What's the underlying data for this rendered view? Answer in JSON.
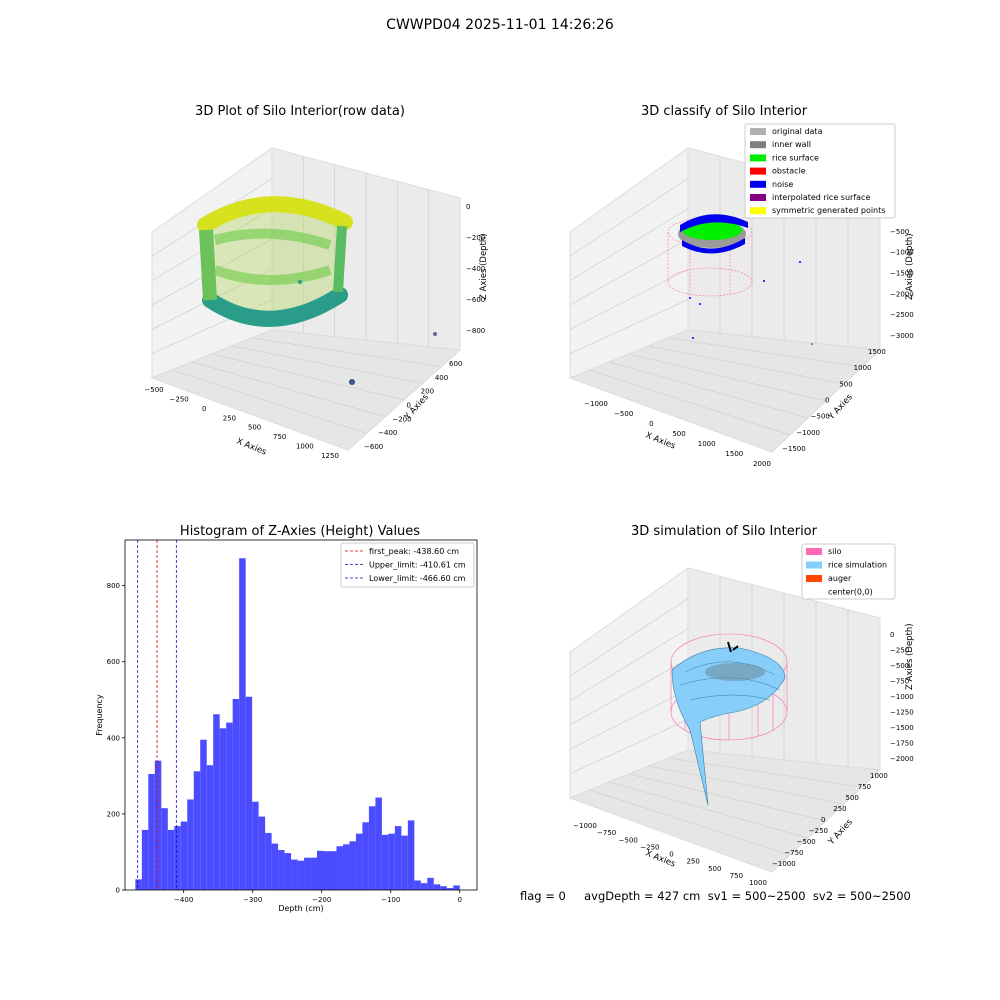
{
  "suptitle": "CWWPD04 2025-11-01 14:26:26",
  "status_text": "flag = 0     avgDepth = 427 cm  sv1 = 500~2500  sv2 = 500~2500",
  "colors": {
    "hist_bar": "#4b4bff",
    "first_peak": "#dd0000",
    "limit": "#1010cc",
    "pane": "#f2f2f2",
    "silo": "#ff69b4",
    "rice_sim": "#87cefa",
    "auger": "#ff4500",
    "legend_original": "#b0b0b0",
    "legend_wall": "#808080",
    "legend_rice": "#00ee00",
    "legend_obstacle": "#ff0000",
    "legend_noise": "#0000ee",
    "legend_interp": "#800080",
    "legend_sym": "#ffff00"
  },
  "raw_plot": {
    "title": "3D Plot of Silo Interior(row data)",
    "x_label": "X Axies",
    "y_label": "Y Axies",
    "z_label": "Z Axies (Depth)",
    "x_ticks": [
      "−500",
      "−250",
      "0",
      "250",
      "500",
      "750",
      "1000",
      "1250"
    ],
    "y_ticks": [
      "−600",
      "−400",
      "−200",
      "0",
      "200",
      "400",
      "600"
    ],
    "z_ticks": [
      "0",
      "−200",
      "−400",
      "−600",
      "−800"
    ]
  },
  "classify_plot": {
    "title": "3D classify of Silo Interior",
    "x_label": "X Axies",
    "y_label": "Y Axies",
    "z_label": "Z Axies (Depth)",
    "x_ticks": [
      "−1000",
      "−500",
      "0",
      "500",
      "1000",
      "1500",
      "2000"
    ],
    "y_ticks": [
      "−1500",
      "−1000",
      "−500",
      "0",
      "500",
      "1000",
      "1500"
    ],
    "z_ticks": [
      "0",
      "−500",
      "−1000",
      "−1500",
      "−2000",
      "−2500",
      "−3000"
    ],
    "legend": [
      "original data",
      "inner wall",
      "rice surface",
      "obstacle",
      "noise",
      "interpolated rice surface",
      "symmetric generated points"
    ]
  },
  "simulation_plot": {
    "title": "3D simulation of Silo Interior",
    "x_label": "X Axies",
    "y_label": "Y Axies",
    "z_label": "Z Axies (Depth)",
    "x_ticks": [
      "−1000",
      "−750",
      "−500",
      "−250",
      "0",
      "250",
      "500",
      "750",
      "1000"
    ],
    "y_ticks": [
      "−1000",
      "−750",
      "−500",
      "−250",
      "0",
      "250",
      "500",
      "750",
      "1000"
    ],
    "z_ticks": [
      "0",
      "−250",
      "−500",
      "−750",
      "−1000",
      "−1250",
      "−1500",
      "−1750",
      "−2000"
    ],
    "legend": [
      "silo",
      "rice simulation",
      "auger",
      "center(0,0)"
    ]
  },
  "chart_data": [
    {
      "type": "bar",
      "title": "Histogram of Z-Axies (Height) Values",
      "xlabel": "Depth (cm)",
      "ylabel": "Frequency",
      "xlim": [
        -485,
        25
      ],
      "ylim": [
        0,
        920
      ],
      "x_ticks": [
        -400,
        -300,
        -200,
        -100,
        0
      ],
      "x_tick_labels": [
        "−400",
        "−300",
        "−200",
        "−100",
        "0"
      ],
      "y_ticks": [
        0,
        200,
        400,
        600,
        800
      ],
      "bin_start": -470,
      "bin_width": 9.4,
      "values": [
        28,
        158,
        305,
        340,
        215,
        158,
        168,
        180,
        238,
        312,
        395,
        328,
        462,
        425,
        440,
        502,
        872,
        508,
        232,
        193,
        150,
        122,
        105,
        97,
        80,
        77,
        85,
        85,
        103,
        102,
        102,
        115,
        120,
        128,
        148,
        178,
        220,
        243,
        145,
        148,
        168,
        143,
        183,
        25,
        18,
        32,
        15,
        10,
        5,
        12
      ],
      "reference_lines": [
        {
          "label": "first_peak: -438.60 cm",
          "x": -438.6,
          "color_key": "first_peak"
        },
        {
          "label": "Upper_limit: -410.61 cm",
          "x": -410.61,
          "color_key": "limit"
        },
        {
          "label": "Lower_limit: -466.60 cm",
          "x": -466.6,
          "color_key": "limit"
        }
      ]
    }
  ]
}
